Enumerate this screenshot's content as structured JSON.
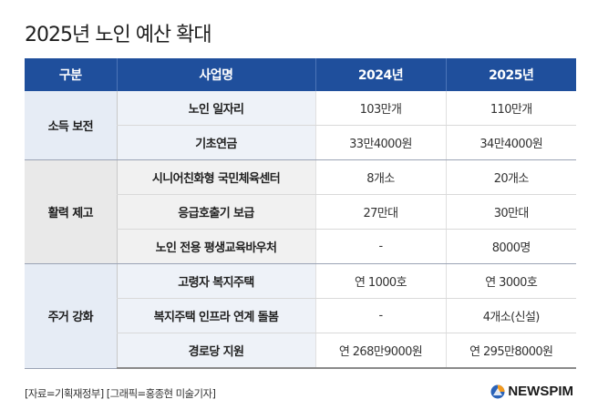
{
  "title": "2025년 노인 예산 확대",
  "table": {
    "headers": [
      "구분",
      "사업명",
      "2024년",
      "2025년"
    ],
    "groups": [
      {
        "category": "소득 보전",
        "rows": [
          {
            "item": "노인 일자리",
            "y2024": "103만개",
            "y2025": "110만개"
          },
          {
            "item": "기초연금",
            "y2024": "33만4000원",
            "y2025": "34만4000원"
          }
        ]
      },
      {
        "category": "활력 제고",
        "rows": [
          {
            "item": "시니어친화형 국민체육센터",
            "y2024": "8개소",
            "y2025": "20개소"
          },
          {
            "item": "응급호출기 보급",
            "y2024": "27만대",
            "y2025": "30만대"
          },
          {
            "item": "노인 전용 평생교육바우처",
            "y2024": "-",
            "y2025": "8000명"
          }
        ]
      },
      {
        "category": "주거 강화",
        "rows": [
          {
            "item": "고령자 복지주택",
            "y2024": "연 1000호",
            "y2025": "연 3000호"
          },
          {
            "item": "복지주택 인프라 연계 돌봄",
            "y2024": "-",
            "y2025": "4개소(신설)"
          },
          {
            "item": "경로당 지원",
            "y2024": "연 268만9000원",
            "y2025": "연 295만8000원"
          }
        ]
      }
    ]
  },
  "footer": {
    "source": "[자료=기획재정부] [그래픽=홍종현 미술기자]",
    "logo_text": "NEWSPIM",
    "logo_icon": "newspim-logo-icon"
  },
  "colors": {
    "header_bg": "#1f4f9c",
    "group_blue": "#e6ecf5",
    "group_gray": "#e9e9e9",
    "logo_orange": "#f39a1e",
    "logo_blue": "#2b63b8"
  }
}
